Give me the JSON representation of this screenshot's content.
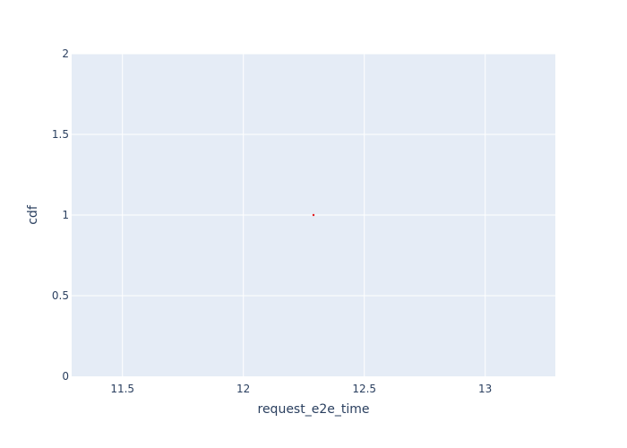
{
  "chart_data": {
    "type": "scatter",
    "title": "",
    "xlabel": "request_e2e_time",
    "ylabel": "cdf",
    "xlim": [
      11.29,
      13.29
    ],
    "ylim": [
      0,
      2
    ],
    "x_ticks": [
      11.5,
      12,
      12.5,
      13
    ],
    "x_tick_labels": [
      "11.5",
      "12",
      "12.5",
      "13"
    ],
    "y_ticks": [
      0,
      0.5,
      1,
      1.5,
      2
    ],
    "y_tick_labels": [
      "0",
      "0.5",
      "1",
      "1.5",
      "2"
    ],
    "grid": true,
    "legend": "none",
    "series": [
      {
        "x": [
          12.29
        ],
        "y": [
          1
        ],
        "color": "#e41a1c"
      }
    ]
  },
  "colors": {
    "plot_bg": "#e5ecf6",
    "grid": "#ffffff",
    "text": "#2a3f5f"
  }
}
